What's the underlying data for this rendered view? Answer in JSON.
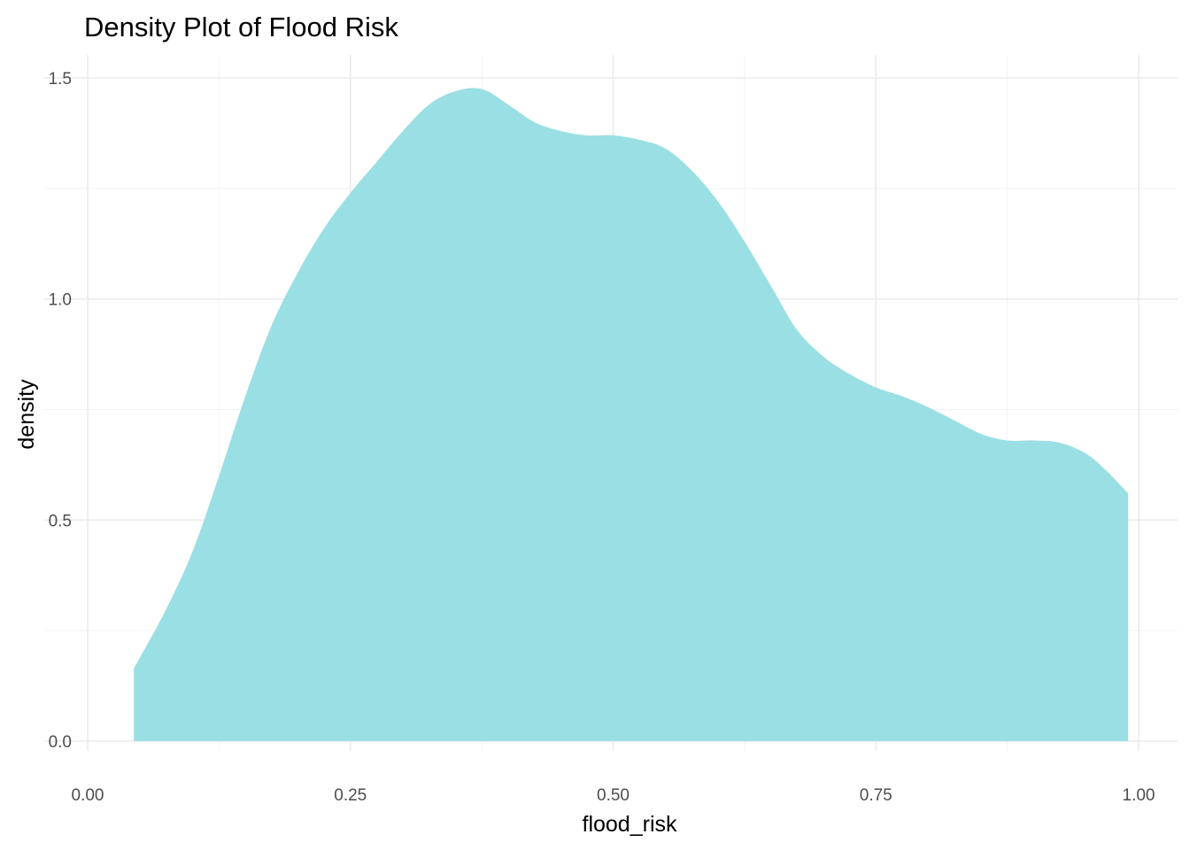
{
  "chart_data": {
    "type": "area",
    "title": "Density Plot of Flood Risk",
    "xlabel": "flood_risk",
    "ylabel": "density",
    "xlim": [
      0,
      1
    ],
    "ylim": [
      0,
      1.5
    ],
    "x_ticks": [
      "0.00",
      "0.25",
      "0.50",
      "0.75",
      "1.00"
    ],
    "y_ticks": [
      "0.0",
      "0.5",
      "1.0",
      "1.5"
    ],
    "grid": true,
    "legend": "none",
    "fill_color": "#9ADFE3",
    "x": [
      0.044,
      0.05,
      0.075,
      0.1,
      0.125,
      0.15,
      0.175,
      0.2,
      0.225,
      0.25,
      0.275,
      0.3,
      0.325,
      0.35,
      0.375,
      0.4,
      0.425,
      0.45,
      0.475,
      0.5,
      0.525,
      0.55,
      0.575,
      0.6,
      0.625,
      0.65,
      0.675,
      0.7,
      0.725,
      0.75,
      0.775,
      0.8,
      0.825,
      0.85,
      0.875,
      0.9,
      0.925,
      0.95,
      0.97,
      0.99
    ],
    "y": [
      0.165,
      0.19,
      0.3,
      0.43,
      0.6,
      0.78,
      0.94,
      1.06,
      1.16,
      1.24,
      1.31,
      1.38,
      1.44,
      1.47,
      1.475,
      1.44,
      1.4,
      1.38,
      1.37,
      1.37,
      1.36,
      1.34,
      1.29,
      1.22,
      1.13,
      1.03,
      0.93,
      0.87,
      0.83,
      0.8,
      0.78,
      0.755,
      0.725,
      0.695,
      0.68,
      0.68,
      0.675,
      0.65,
      0.61,
      0.56
    ]
  }
}
